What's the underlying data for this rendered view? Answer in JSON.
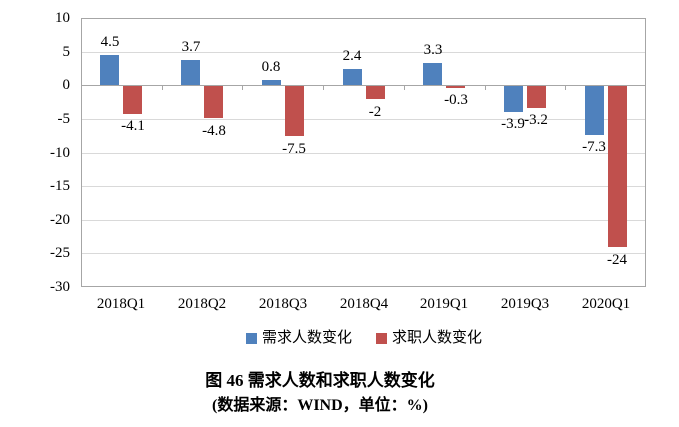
{
  "chart_data": {
    "type": "bar",
    "title": "图 46  需求人数和求职人数变化",
    "subtitle": "(数据来源：WIND，单位：%)",
    "categories": [
      "2018Q1",
      "2018Q2",
      "2018Q3",
      "2018Q4",
      "2019Q1",
      "2019Q3",
      "2020Q1"
    ],
    "series": [
      {
        "name": "需求人数变化",
        "color": "#4f81bd",
        "values": [
          4.5,
          3.7,
          0.8,
          2.4,
          3.3,
          -3.9,
          -7.3
        ],
        "labels": [
          "4.5",
          "3.7",
          "0.8",
          "2.4",
          "3.3",
          "-3.9",
          "-7.3"
        ]
      },
      {
        "name": "求职人数变化",
        "color": "#c0504d",
        "values": [
          -4.1,
          -4.8,
          -7.5,
          -2,
          -0.3,
          -3.2,
          -24
        ],
        "labels": [
          "-4.1",
          "-4.8",
          "-7.5",
          "-2",
          "-0.3",
          "-3.2",
          "-24"
        ]
      }
    ],
    "ylim": [
      -30,
      10
    ],
    "yticks": [
      10,
      5,
      0,
      -5,
      -10,
      -15,
      -20,
      -25,
      -30
    ],
    "ytick_labels": [
      "10",
      "5",
      "0",
      "-5",
      "-10",
      "-15",
      "-20",
      "-25",
      "-30"
    ],
    "grid": true,
    "legend_position": "bottom",
    "xlabel": "",
    "ylabel": "",
    "axis_color": "#a6a6a6",
    "gridline_color": "#d9d9d9",
    "text_color": "#000000"
  }
}
